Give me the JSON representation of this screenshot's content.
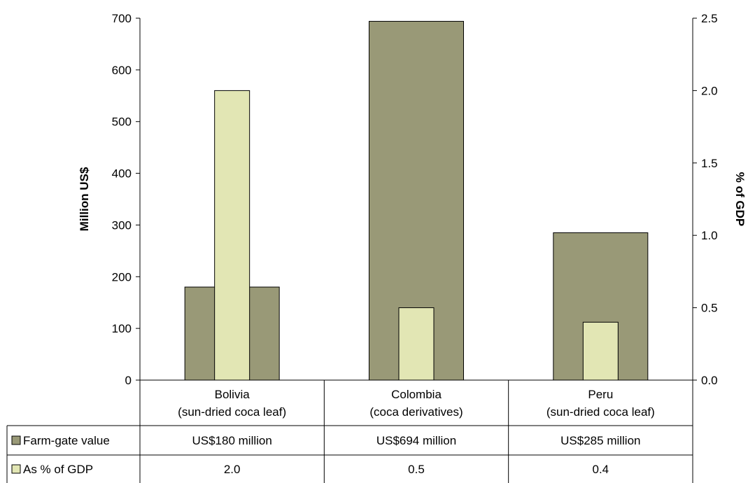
{
  "chart_data": {
    "type": "bar",
    "categories": [
      [
        "Bolivia",
        "(sun-dried coca leaf)"
      ],
      [
        "Colombia",
        "(coca derivatives)"
      ],
      [
        "Peru",
        "(sun-dried coca leaf)"
      ]
    ],
    "series": [
      {
        "name": "Farm-gate value",
        "axis": "left",
        "values": [
          180,
          694,
          285
        ],
        "color": "#999977"
      },
      {
        "name": "As % of GDP",
        "axis": "right",
        "values": [
          2.0,
          0.5,
          0.4
        ],
        "color": "#e2e6b4"
      }
    ],
    "ylabel_left": "Million US$",
    "ylabel_right": "% of GDP",
    "ylim_left": [
      0,
      700
    ],
    "ylim_right": [
      0,
      2.5
    ],
    "yticks_left": [
      "0",
      "100",
      "200",
      "300",
      "400",
      "500",
      "600",
      "700"
    ],
    "yticks_right": [
      "0.0",
      "0.5",
      "1.0",
      "1.5",
      "2.0",
      "2.5"
    ],
    "grid": false,
    "legend": "data-table-below",
    "data_table": {
      "rows": [
        {
          "label": "Farm-gate value",
          "cells": [
            "US$180 million",
            "US$694 million",
            "US$285 million"
          ]
        },
        {
          "label": "As % of GDP",
          "cells": [
            "2.0",
            "0.5",
            "0.4"
          ]
        }
      ]
    }
  }
}
